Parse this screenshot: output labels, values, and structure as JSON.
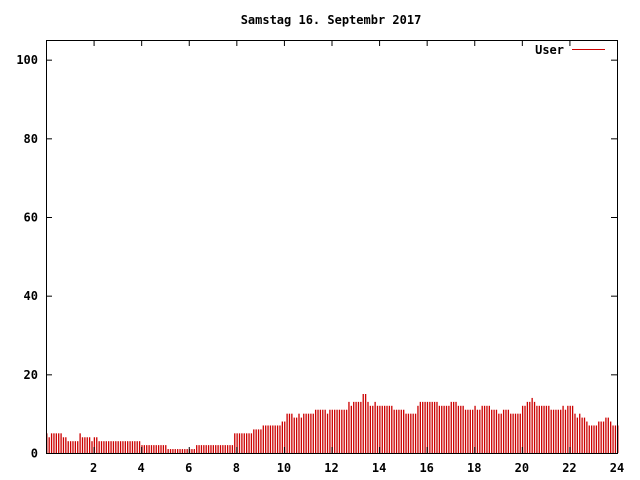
{
  "chart_data": {
    "type": "bar",
    "title": "Samstag 16. Septembr 2017",
    "xlabel": "",
    "ylabel": "",
    "xlim": [
      0,
      24
    ],
    "ylim": [
      0,
      105
    ],
    "x_ticks": [
      2,
      4,
      6,
      8,
      10,
      12,
      14,
      16,
      18,
      20,
      22,
      24
    ],
    "y_ticks": [
      0,
      20,
      40,
      60,
      80,
      100
    ],
    "grid": false,
    "legend_position": "top-right",
    "series": [
      {
        "name": "User",
        "color": "#cc0000",
        "bin_width_hours": 0.1,
        "values": [
          5,
          4,
          5,
          5,
          5,
          5,
          5,
          4,
          4,
          3,
          3,
          3,
          3,
          3,
          5,
          4,
          4,
          4,
          4,
          3,
          4,
          4,
          3,
          3,
          3,
          3,
          3,
          3,
          3,
          3,
          3,
          3,
          3,
          3,
          3,
          3,
          3,
          3,
          3,
          3,
          2,
          2,
          2,
          2,
          2,
          2,
          2,
          2,
          2,
          2,
          2,
          1,
          1,
          1,
          1,
          1,
          1,
          1,
          1,
          1,
          1,
          1,
          1,
          2,
          2,
          2,
          2,
          2,
          2,
          2,
          2,
          2,
          2,
          2,
          2,
          2,
          2,
          2,
          2,
          5,
          5,
          5,
          5,
          5,
          5,
          5,
          5,
          6,
          6,
          6,
          6,
          7,
          7,
          7,
          7,
          7,
          7,
          7,
          7,
          8,
          8,
          10,
          10,
          10,
          9,
          9,
          10,
          9,
          10,
          10,
          10,
          10,
          10,
          11,
          11,
          11,
          11,
          11,
          10,
          11,
          11,
          11,
          11,
          11,
          11,
          11,
          11,
          13,
          12,
          13,
          13,
          13,
          13,
          15,
          15,
          13,
          12,
          12,
          13,
          12,
          12,
          12,
          12,
          12,
          12,
          12,
          11,
          11,
          11,
          11,
          11,
          10,
          10,
          10,
          10,
          10,
          12,
          13,
          13,
          13,
          13,
          13,
          13,
          13,
          13,
          12,
          12,
          12,
          12,
          12,
          13,
          13,
          13,
          12,
          12,
          12,
          11,
          11,
          11,
          11,
          12,
          11,
          11,
          12,
          12,
          12,
          12,
          11,
          11,
          11,
          10,
          10,
          11,
          11,
          11,
          10,
          10,
          10,
          10,
          10,
          12,
          12,
          13,
          13,
          14,
          13,
          12,
          12,
          12,
          12,
          12,
          12,
          11,
          11,
          11,
          11,
          11,
          12,
          11,
          12,
          12,
          12,
          10,
          9,
          10,
          9,
          9,
          8,
          7,
          7,
          7,
          7,
          8,
          8,
          8,
          9,
          9,
          8,
          7,
          7,
          7
        ]
      }
    ]
  }
}
